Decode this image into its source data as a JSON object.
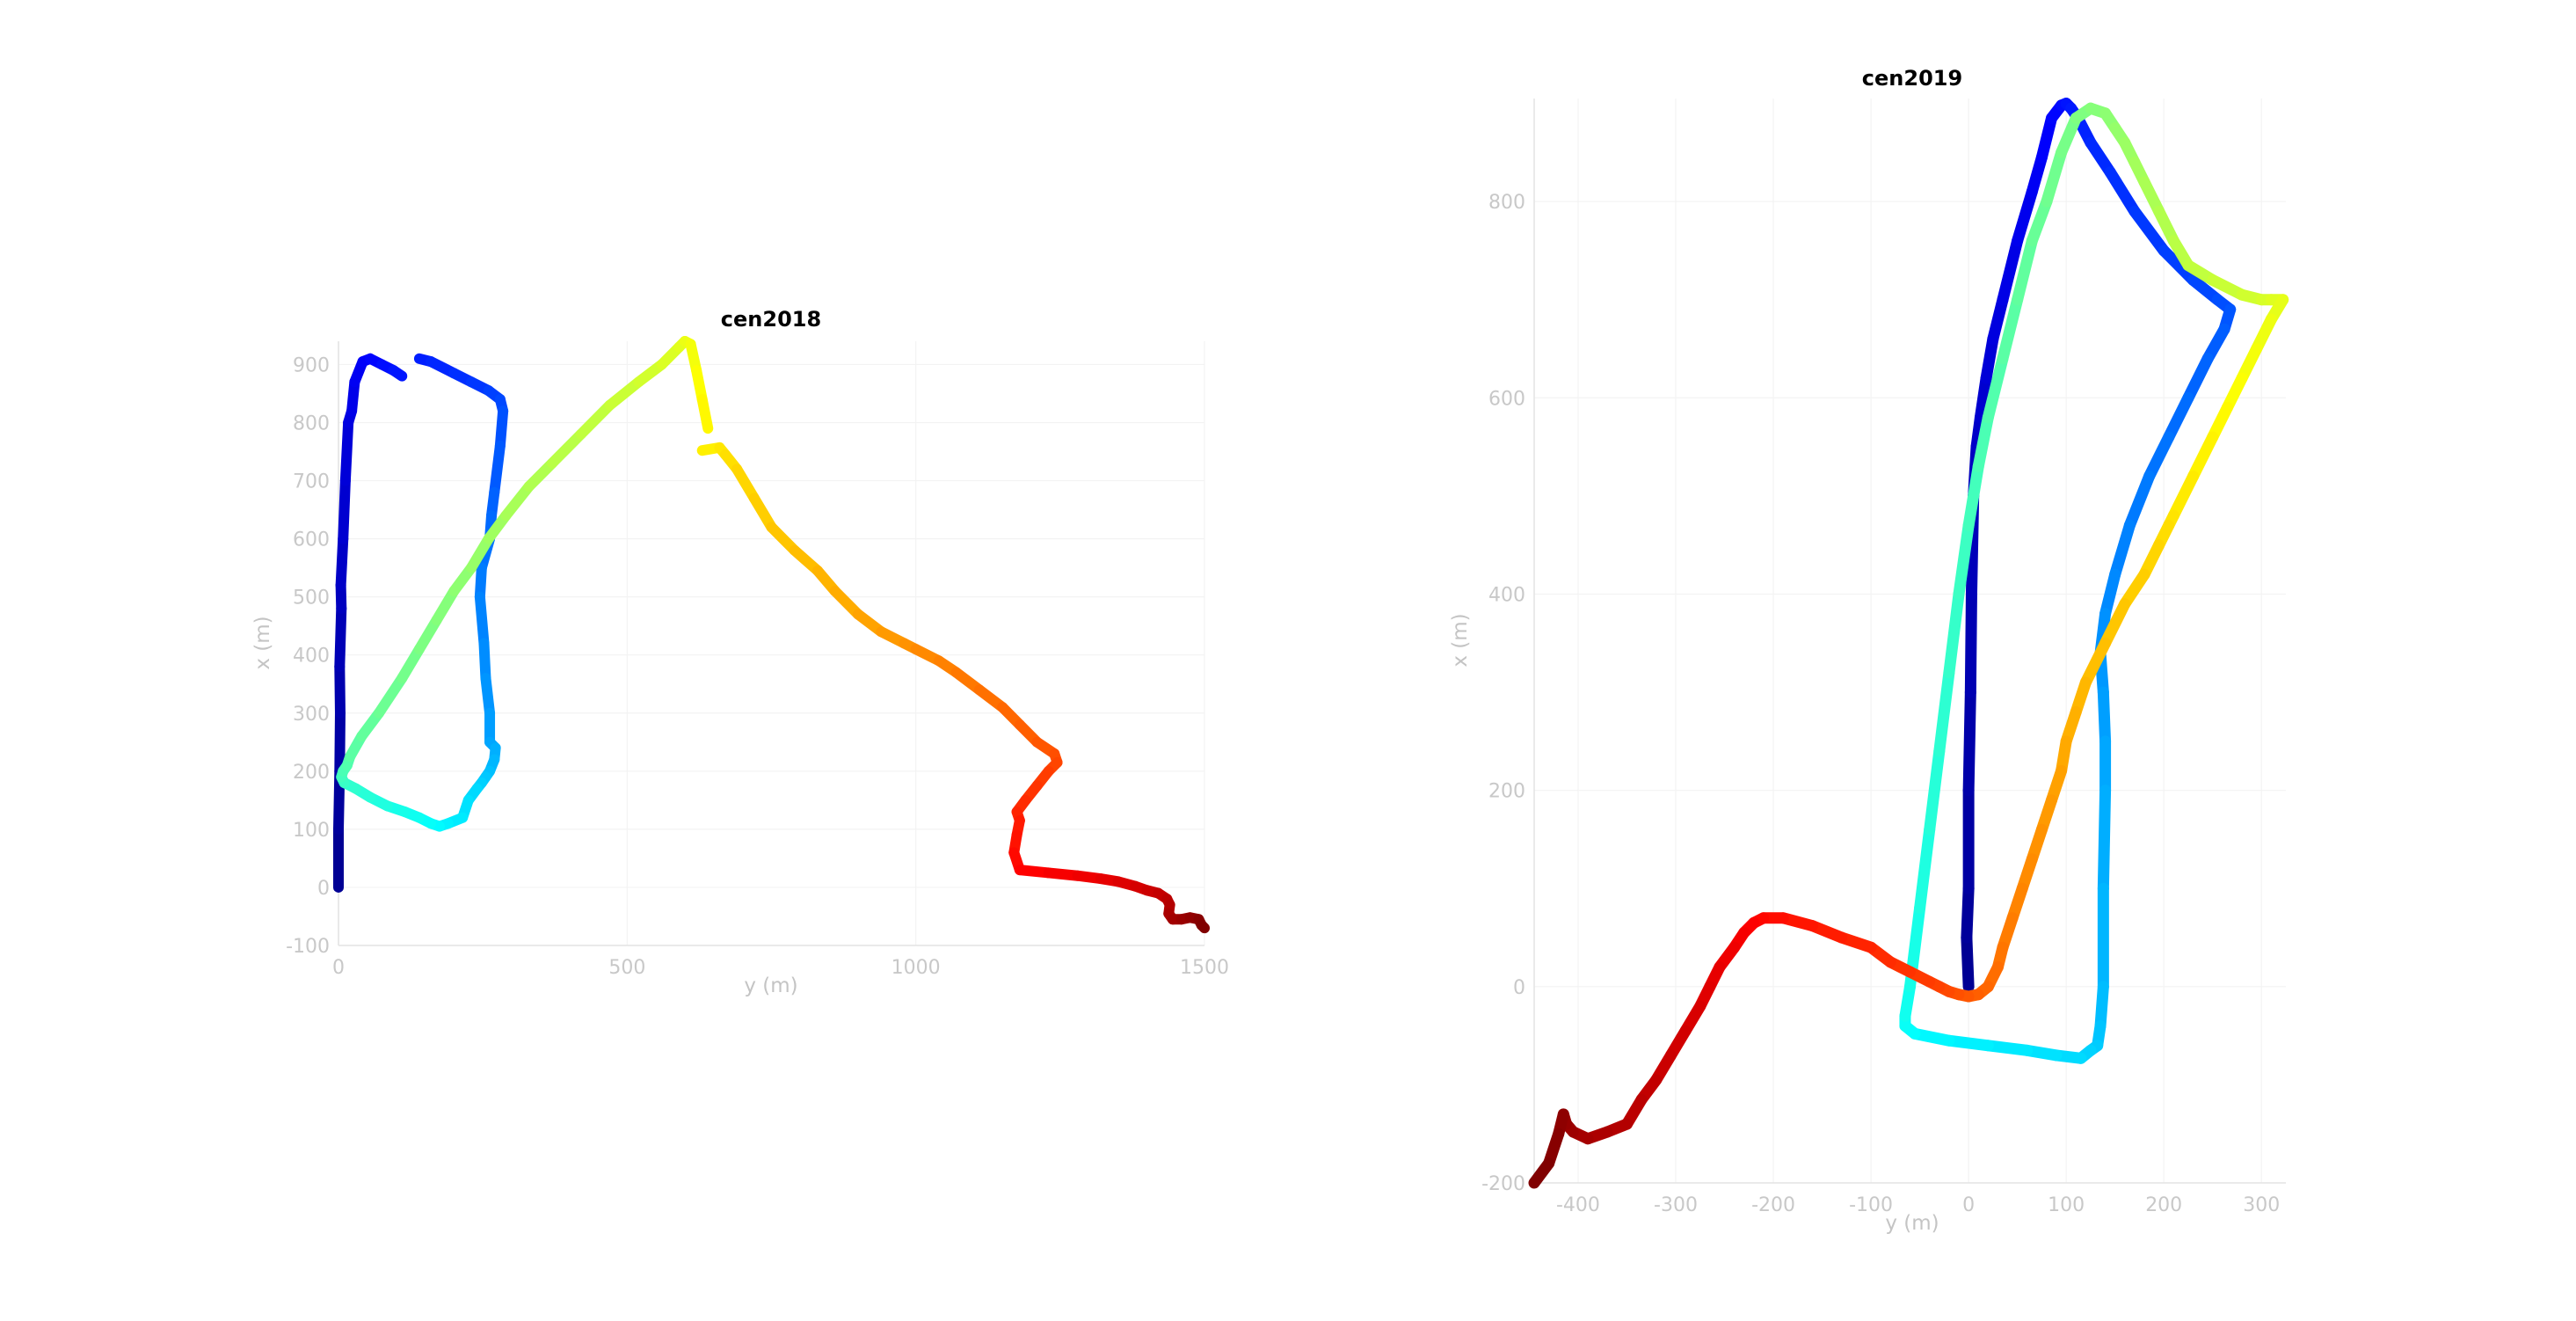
{
  "chart_data": [
    {
      "type": "line",
      "title": "cen2018",
      "xlabel": "y (m)",
      "ylabel": "x (m)",
      "xlim": [
        0,
        1500
      ],
      "ylim": [
        -100,
        940
      ],
      "xticks": [
        0,
        500,
        1000,
        1500
      ],
      "yticks": [
        -100,
        0,
        100,
        200,
        300,
        400,
        500,
        600,
        700,
        800,
        900
      ],
      "xtick_labels": [
        "0",
        "500",
        "1000",
        "1500"
      ],
      "ytick_labels": [
        "-100",
        "0",
        "100",
        "200",
        "300",
        "400",
        "500",
        "600",
        "700",
        "800",
        "900"
      ],
      "grid": true,
      "colormap": "jet",
      "series": [
        {
          "x": [
            0,
            0,
            2,
            3,
            2,
            5,
            4,
            8,
            12,
            17,
            23,
            28,
            42,
            55,
            75,
            95,
            110
          ],
          "y": [
            0,
            100,
            200,
            300,
            380,
            480,
            520,
            600,
            700,
            800,
            820,
            870,
            905,
            910,
            900,
            890,
            880
          ]
        },
        {
          "x": [
            140,
            160,
            200,
            230,
            260,
            280,
            285,
            280,
            270,
            265,
            262,
            248,
            245,
            252,
            255,
            262,
            262,
            272,
            270,
            262,
            255,
            248,
            240,
            225,
            215,
            190,
            175,
            160,
            140,
            115,
            85,
            55,
            30,
            10,
            5,
            8,
            15,
            20,
            40,
            70,
            110,
            140,
            170,
            200,
            230,
            260,
            290,
            330,
            370,
            420,
            470,
            520,
            560,
            590,
            600,
            610,
            620,
            630,
            640
          ],
          "y": [
            910,
            905,
            885,
            870,
            855,
            840,
            820,
            760,
            680,
            640,
            600,
            550,
            500,
            420,
            360,
            300,
            250,
            240,
            220,
            200,
            190,
            180,
            170,
            150,
            120,
            110,
            105,
            110,
            120,
            130,
            140,
            155,
            170,
            180,
            190,
            200,
            210,
            225,
            260,
            300,
            360,
            410,
            460,
            510,
            550,
            600,
            640,
            690,
            730,
            780,
            830,
            870,
            900,
            930,
            940,
            935,
            890,
            840,
            790
          ]
        },
        {
          "x": [
            630,
            660,
            670,
            690,
            720,
            750,
            790,
            830,
            860,
            900,
            940,
            980,
            1000,
            1040,
            1070,
            1110,
            1150,
            1180,
            1210,
            1240,
            1245,
            1230,
            1210,
            1190,
            1175,
            1180,
            1175,
            1170,
            1180,
            1230,
            1280,
            1320,
            1350,
            1380,
            1400,
            1420,
            1435,
            1440,
            1438,
            1445,
            1460,
            1475,
            1490,
            1495,
            1500
          ],
          "y": [
            752,
            757,
            745,
            720,
            670,
            620,
            580,
            545,
            510,
            470,
            440,
            420,
            410,
            390,
            370,
            340,
            310,
            280,
            250,
            230,
            215,
            200,
            175,
            150,
            130,
            115,
            90,
            60,
            30,
            25,
            20,
            15,
            10,
            2,
            -5,
            -10,
            -20,
            -30,
            -45,
            -55,
            -55,
            -52,
            -55,
            -65,
            -70
          ]
        }
      ]
    },
    {
      "type": "line",
      "title": "cen2019",
      "xlabel": "y (m)",
      "ylabel": "x (m)",
      "xlim": [
        -445,
        325
      ],
      "ylim": [
        -200,
        905
      ],
      "xticks": [
        -400,
        -300,
        -200,
        -100,
        0,
        100,
        200,
        300
      ],
      "yticks": [
        -200,
        0,
        200,
        400,
        600,
        800
      ],
      "xtick_labels": [
        "-400",
        "-300",
        "-200",
        "-100",
        "0",
        "100",
        "200",
        "300"
      ],
      "ytick_labels": [
        "-200",
        "0",
        "200",
        "400",
        "600",
        "800"
      ],
      "grid": true,
      "colormap": "jet",
      "series": [
        {
          "x": [
            0,
            -2,
            0,
            0,
            2,
            3,
            5,
            8,
            12,
            18,
            25,
            35,
            50,
            65,
            75,
            85,
            95,
            100,
            105,
            112,
            125,
            145,
            170,
            200,
            230,
            255,
            268,
            262,
            245,
            225,
            205,
            185,
            165,
            150,
            140,
            135,
            138,
            140,
            140,
            138,
            138,
            135,
            132,
            125,
            115,
            90,
            60,
            20,
            -20,
            -55,
            -65,
            -65,
            -60,
            -50,
            -40,
            -30,
            -20,
            -10,
            0,
            10,
            20,
            35,
            50,
            65,
            80,
            95,
            110,
            125,
            140,
            150,
            160,
            170,
            180,
            195,
            210,
            225,
            250,
            280,
            300,
            310,
            322,
            310,
            295,
            280,
            265,
            250,
            230,
            210,
            205,
            195,
            180,
            160,
            140,
            120,
            110,
            100,
            95,
            85,
            75,
            65,
            55,
            45,
            35,
            30,
            20,
            10,
            0,
            -10,
            -20,
            -30,
            -40,
            -60,
            -80,
            -100,
            -130,
            -160,
            -190,
            -210,
            -220,
            -230,
            -240,
            -255,
            -265,
            -275,
            -290,
            -305,
            -320,
            -335,
            -350,
            -370,
            -390,
            -405,
            -412,
            -415,
            -420,
            -430,
            -445
          ],
          "y": [
            0,
            50,
            100,
            200,
            300,
            400,
            500,
            550,
            580,
            620,
            660,
            700,
            760,
            810,
            845,
            885,
            898,
            900,
            895,
            885,
            860,
            830,
            790,
            750,
            720,
            700,
            690,
            670,
            640,
            600,
            560,
            520,
            470,
            420,
            380,
            340,
            300,
            250,
            200,
            100,
            0,
            -40,
            -60,
            -65,
            -73,
            -70,
            -65,
            -60,
            -55,
            -48,
            -40,
            -30,
            0,
            80,
            160,
            240,
            320,
            400,
            470,
            530,
            580,
            640,
            700,
            760,
            800,
            850,
            885,
            895,
            890,
            875,
            860,
            840,
            820,
            790,
            760,
            735,
            720,
            705,
            700,
            700,
            700,
            680,
            650,
            620,
            590,
            560,
            520,
            480,
            470,
            450,
            420,
            390,
            350,
            310,
            280,
            250,
            220,
            190,
            160,
            130,
            100,
            70,
            40,
            20,
            0,
            -8,
            -10,
            -8,
            -5,
            0,
            5,
            15,
            25,
            40,
            50,
            62,
            70,
            70,
            65,
            55,
            40,
            20,
            0,
            -20,
            -45,
            -70,
            -95,
            -115,
            -140,
            -148,
            -155,
            -148,
            -140,
            -130,
            -150,
            -180,
            -200
          ]
        }
      ]
    }
  ]
}
